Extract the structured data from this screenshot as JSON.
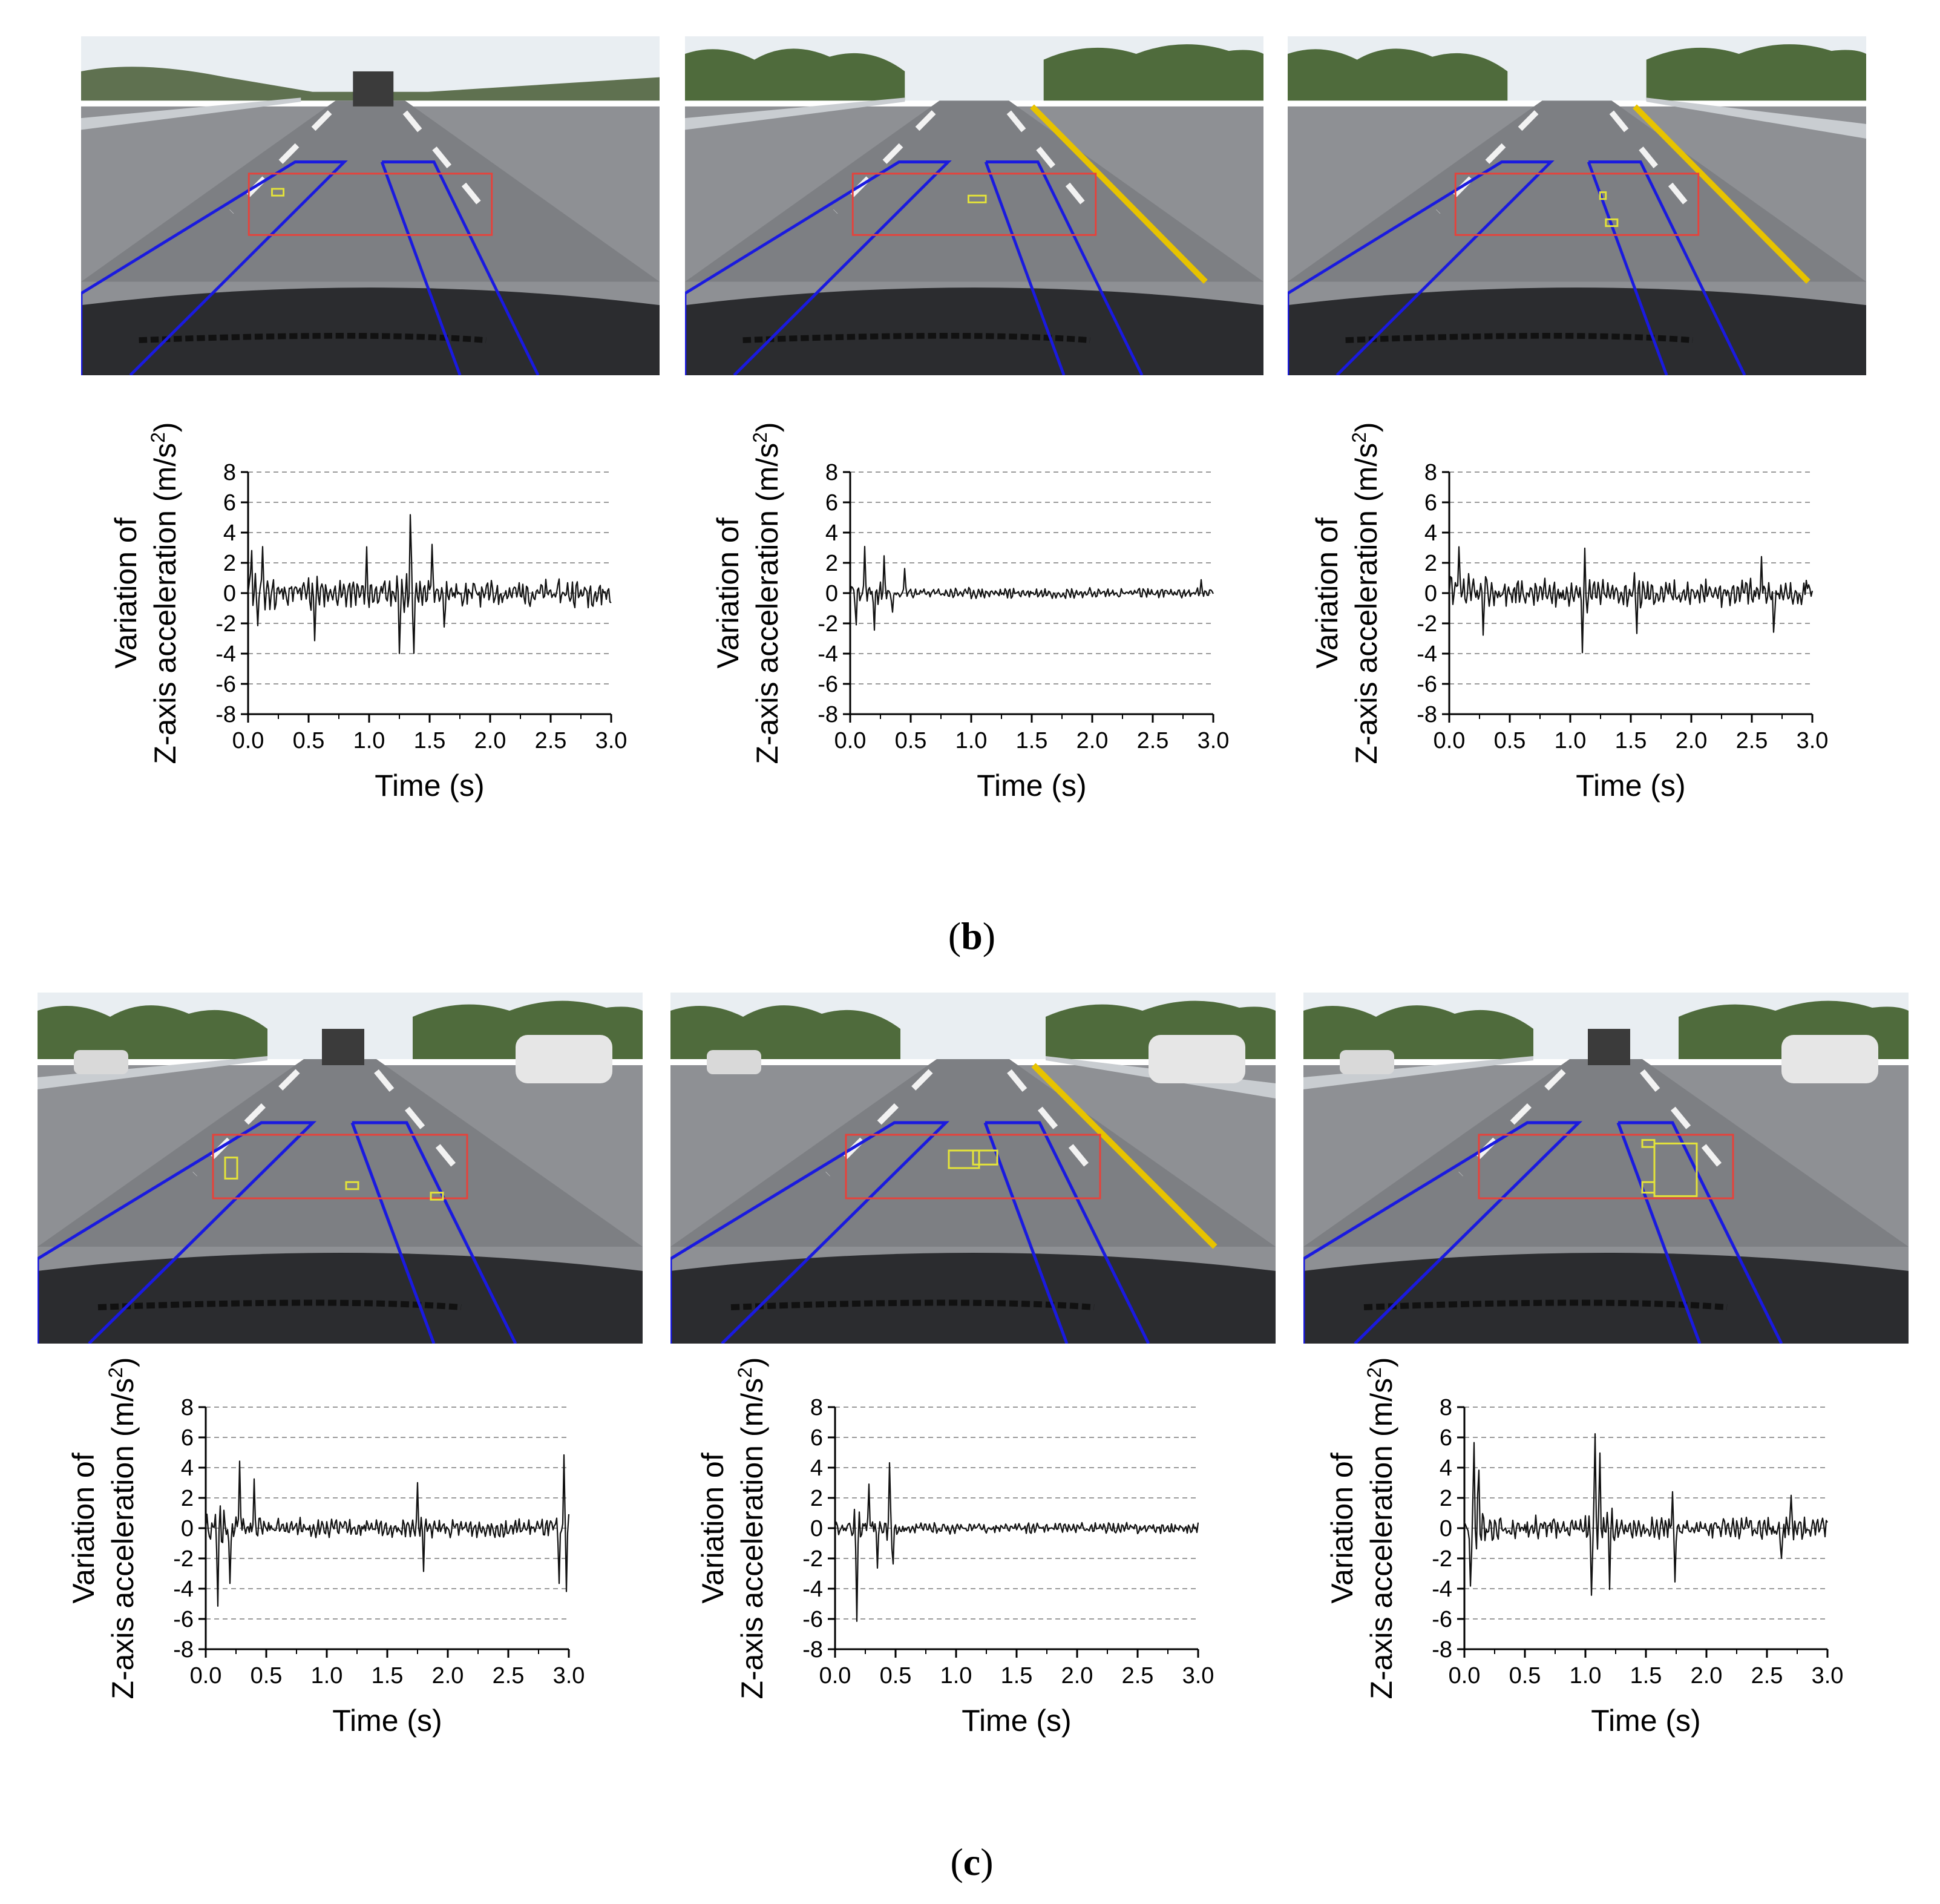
{
  "panels": [
    {
      "label": "b"
    },
    {
      "label": "c"
    }
  ],
  "colors": {
    "roi_lane": "#1a1adf",
    "roi_box": "#e8413a",
    "detection": "#e4e33a",
    "signal": "#111111",
    "grid": "#9a9a9a"
  },
  "chart_data": [
    {
      "id": "b1",
      "type": "line",
      "title": "",
      "xlabel": "Time (s)",
      "ylabel_line1": "Variation of",
      "ylabel_line2": "Z-axis acceleration (m/s",
      "ylabel_sup": "2",
      "ylabel_end": ")",
      "xlim": [
        0,
        3
      ],
      "ylim": [
        -8,
        8
      ],
      "xticks": [
        "0.0",
        "0.5",
        "1.0",
        "1.5",
        "2.0",
        "2.5",
        "3.0"
      ],
      "yticks": [
        "8",
        "6",
        "4",
        "2",
        "0",
        "-2",
        "-4",
        "-6",
        "-8"
      ],
      "grid": "dashed horizontal",
      "peaks": [
        [
          0.03,
          3.9
        ],
        [
          0.08,
          -1.6
        ],
        [
          0.12,
          2.6
        ],
        [
          0.55,
          -2.8
        ],
        [
          0.98,
          2.1
        ],
        [
          1.25,
          -3.6
        ],
        [
          1.34,
          5.4
        ],
        [
          1.37,
          -4.3
        ],
        [
          1.52,
          3.2
        ],
        [
          1.62,
          -1.6
        ]
      ],
      "base_amp": 0.9,
      "decay_amp": 0.3,
      "seed": 11
    },
    {
      "id": "b2",
      "type": "line",
      "title": "",
      "xlabel": "Time (s)",
      "ylabel_line1": "Variation of",
      "ylabel_line2": "Z-axis acceleration (m/s",
      "ylabel_sup": "2",
      "ylabel_end": ")",
      "xlim": [
        0,
        3
      ],
      "ylim": [
        -8,
        8
      ],
      "xticks": [
        "0.0",
        "0.5",
        "1.0",
        "1.5",
        "2.0",
        "2.5",
        "3.0"
      ],
      "yticks": [
        "8",
        "6",
        "4",
        "2",
        "0",
        "-2",
        "-4",
        "-6",
        "-8"
      ],
      "grid": "dashed horizontal",
      "peaks": [
        [
          0.05,
          -2.2
        ],
        [
          0.12,
          3.0
        ],
        [
          0.2,
          -2.9
        ],
        [
          0.28,
          2.4
        ],
        [
          0.35,
          -1.6
        ],
        [
          0.45,
          1.5
        ],
        [
          2.9,
          0.8
        ]
      ],
      "base_amp": 0.35,
      "decay_amp": 0.15,
      "seed": 23
    },
    {
      "id": "b3",
      "type": "line",
      "title": "",
      "xlabel": "Time (s)",
      "ylabel_line1": "Variation of",
      "ylabel_line2": "Z-axis acceleration (m/s",
      "ylabel_sup": "2",
      "ylabel_end": ")",
      "xlim": [
        0,
        3
      ],
      "ylim": [
        -8,
        8
      ],
      "xticks": [
        "0.0",
        "0.5",
        "1.0",
        "1.5",
        "2.0",
        "2.5",
        "3.0"
      ],
      "yticks": [
        "8",
        "6",
        "4",
        "2",
        "0",
        "-2",
        "-4",
        "-6",
        "-8"
      ],
      "grid": "dashed horizontal",
      "peaks": [
        [
          0.08,
          3.1
        ],
        [
          0.28,
          -2.4
        ],
        [
          1.1,
          -3.0
        ],
        [
          1.12,
          1.8
        ],
        [
          1.55,
          -2.4
        ],
        [
          2.58,
          3.0
        ],
        [
          2.68,
          -2.6
        ],
        [
          2.95,
          1.2
        ]
      ],
      "base_amp": 0.9,
      "decay_amp": 0.2,
      "seed": 37
    },
    {
      "id": "c1",
      "type": "line",
      "title": "",
      "xlabel": "Time (s)",
      "ylabel_line1": "Variation of",
      "ylabel_line2": "Z-axis acceleration (m/s",
      "ylabel_sup": "2",
      "ylabel_end": ")",
      "xlim": [
        0,
        3
      ],
      "ylim": [
        -8,
        8
      ],
      "xticks": [
        "0.0",
        "0.5",
        "1.0",
        "1.5",
        "2.0",
        "2.5",
        "3.0"
      ],
      "yticks": [
        "8",
        "6",
        "4",
        "2",
        "0",
        "-2",
        "-4",
        "-6",
        "-8"
      ],
      "grid": "dashed horizontal",
      "peaks": [
        [
          0.1,
          -5.5
        ],
        [
          0.2,
          -4.0
        ],
        [
          0.28,
          4.8
        ],
        [
          0.4,
          2.8
        ],
        [
          1.75,
          2.5
        ],
        [
          1.8,
          -2.3
        ],
        [
          2.92,
          -4.0
        ],
        [
          2.96,
          4.0
        ],
        [
          2.98,
          -3.5
        ]
      ],
      "base_amp": 0.6,
      "decay_amp": 0.3,
      "seed": 51
    },
    {
      "id": "c2",
      "type": "line",
      "title": "",
      "xlabel": "Time (s)",
      "ylabel_line1": "Variation of",
      "ylabel_line2": "Z-axis acceleration (m/s",
      "ylabel_sup": "2",
      "ylabel_end": ")",
      "xlim": [
        0,
        3
      ],
      "ylim": [
        -8,
        8
      ],
      "xticks": [
        "0.0",
        "0.5",
        "1.0",
        "1.5",
        "2.0",
        "2.5",
        "3.0"
      ],
      "yticks": [
        "8",
        "6",
        "4",
        "2",
        "0",
        "-2",
        "-4",
        "-6",
        "-8"
      ],
      "grid": "dashed horizontal",
      "peaks": [
        [
          0.18,
          -5.8
        ],
        [
          0.28,
          3.0
        ],
        [
          0.35,
          -2.6
        ],
        [
          0.45,
          4.1
        ],
        [
          0.48,
          -2.5
        ]
      ],
      "base_amp": 0.35,
      "decay_amp": 0.1,
      "seed": 63
    },
    {
      "id": "c3",
      "type": "line",
      "title": "",
      "xlabel": "Time (s)",
      "ylabel_line1": "Variation of",
      "ylabel_line2": "Z-axis acceleration (m/s",
      "ylabel_sup": "2",
      "ylabel_end": ")",
      "xlim": [
        0,
        3
      ],
      "ylim": [
        -8,
        8
      ],
      "xticks": [
        "0.0",
        "0.5",
        "1.0",
        "1.5",
        "2.0",
        "2.5",
        "3.0"
      ],
      "yticks": [
        "8",
        "6",
        "4",
        "2",
        "0",
        "-2",
        "-4",
        "-6",
        "-8"
      ],
      "grid": "dashed horizontal",
      "peaks": [
        [
          0.05,
          -4.6
        ],
        [
          0.08,
          6.0
        ],
        [
          0.12,
          3.2
        ],
        [
          1.05,
          -4.8
        ],
        [
          1.08,
          6.0
        ],
        [
          1.12,
          4.8
        ],
        [
          1.2,
          -3.3
        ],
        [
          1.72,
          1.8
        ],
        [
          1.74,
          -3.6
        ],
        [
          2.62,
          -2.6
        ],
        [
          2.7,
          1.8
        ]
      ],
      "base_amp": 0.7,
      "decay_amp": 0.3,
      "seed": 77
    }
  ]
}
